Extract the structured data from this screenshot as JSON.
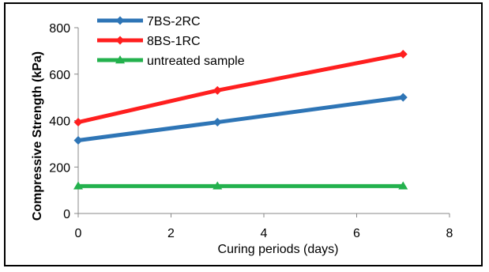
{
  "chart_data": {
    "type": "line",
    "xlabel": "Curing periods (days)",
    "ylabel": "Compressive Strength (kPa)",
    "xlim": [
      0,
      8
    ],
    "ylim": [
      0,
      800
    ],
    "xticks": [
      "0",
      "2",
      "4",
      "6",
      "8"
    ],
    "yticks": [
      "0",
      "200",
      "400",
      "600",
      "800"
    ],
    "legend_position": "top-left",
    "grid": false,
    "series": [
      {
        "name": "7BS-2RC",
        "color": "#2E75B6",
        "marker": "diamond",
        "x": [
          0,
          3,
          7
        ],
        "y": [
          315,
          393,
          500
        ]
      },
      {
        "name": "8BS-1RC",
        "color": "#FF1F1F",
        "marker": "diamond",
        "x": [
          0,
          3,
          7
        ],
        "y": [
          393,
          530,
          686
        ]
      },
      {
        "name": "untreated sample",
        "color": "#23B14D",
        "marker": "triangle",
        "x": [
          0,
          3,
          7
        ],
        "y": [
          118,
          118,
          118
        ]
      }
    ]
  }
}
